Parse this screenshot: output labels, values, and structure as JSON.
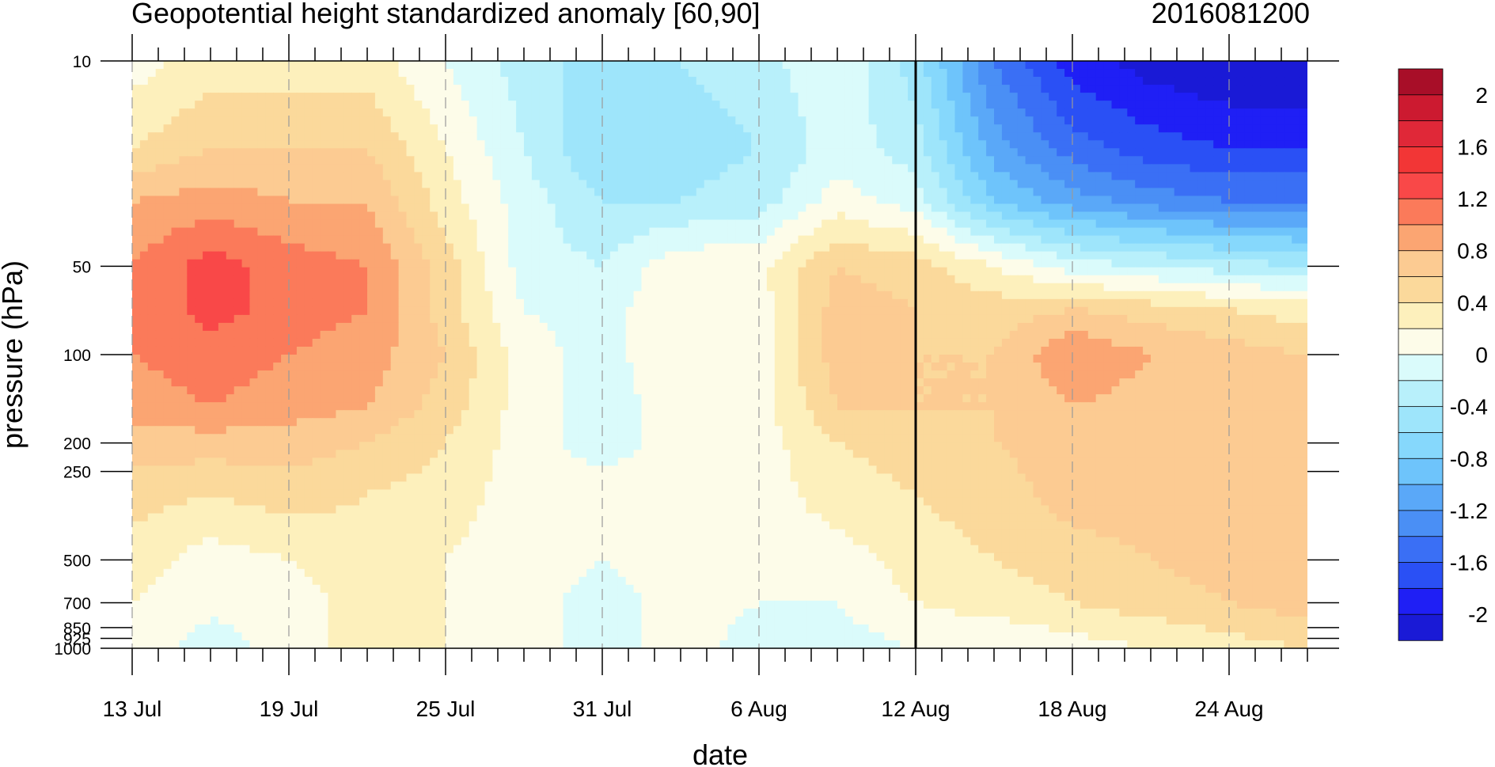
{
  "chart_data": {
    "type": "heatmap",
    "subtype": "filled-contour",
    "title": "Geopotential height standardized anomaly [60,90]",
    "subtitle": "2016081200",
    "xlabel": "date",
    "ylabel": "pressure (hPa)",
    "x_ticks": [
      {
        "label": "13 Jul",
        "day": 0
      },
      {
        "label": "19 Jul",
        "day": 6
      },
      {
        "label": "25 Jul",
        "day": 12
      },
      {
        "label": "31 Jul",
        "day": 18
      },
      {
        "label": "6 Aug",
        "day": 24
      },
      {
        "label": "12 Aug",
        "day": 30
      },
      {
        "label": "18 Aug",
        "day": 36
      },
      {
        "label": "24 Aug",
        "day": 42
      }
    ],
    "x_range_days": [
      0,
      45
    ],
    "y_ticks": [
      10,
      50,
      100,
      200,
      250,
      500,
      700,
      850,
      925,
      1000
    ],
    "y_range": [
      1000,
      10
    ],
    "y_scale": "log",
    "vertical_marker": "12 Aug",
    "grid": "dashed vertical lines at labeled dates",
    "colorbar": {
      "labels": [
        "2",
        "1.6",
        "1.2",
        "0.8",
        "0.4",
        "0",
        "-0.4",
        "-0.8",
        "-1.2",
        "-1.6",
        "-2"
      ],
      "levels": [
        -2.2,
        -2.0,
        -1.8,
        -1.6,
        -1.4,
        -1.2,
        -1.0,
        -0.8,
        -0.6,
        -0.4,
        -0.2,
        0,
        0.2,
        0.4,
        0.6,
        0.8,
        1.0,
        1.2,
        1.4,
        1.6,
        1.8,
        2.0,
        2.2
      ],
      "colors_low_to_high": [
        "#1a1ad6",
        "#1f1ff5",
        "#2a50f5",
        "#3a6ff5",
        "#4a8ff5",
        "#5aa8f8",
        "#6ec4fb",
        "#86d8fc",
        "#9ee5fb",
        "#b8f0fb",
        "#dafbfb",
        "#fdfce9",
        "#fdf0bc",
        "#fbd99b",
        "#fccb92",
        "#fba572",
        "#fb7a5a",
        "#f94848",
        "#f23636",
        "#e02838",
        "#cc1a30",
        "#a80e28"
      ]
    },
    "anomaly_grid": {
      "days": [
        0,
        3,
        6,
        9,
        12,
        15,
        18,
        21,
        24,
        27,
        30,
        33,
        36,
        39,
        42,
        45
      ],
      "pressures_hPa": [
        10,
        20,
        30,
        50,
        70,
        100,
        150,
        200,
        300,
        500,
        700,
        1000
      ],
      "values": [
        [
          0.1,
          0.3,
          0.3,
          0.3,
          0.0,
          -0.3,
          -0.5,
          -0.4,
          -0.3,
          0.0,
          -0.5,
          -1.4,
          -1.9,
          -2.1,
          -2.2,
          -2.2
        ],
        [
          0.4,
          0.6,
          0.6,
          0.6,
          0.2,
          -0.2,
          -0.6,
          -0.5,
          -0.4,
          -0.1,
          -0.3,
          -1.1,
          -1.5,
          -1.7,
          -1.8,
          -1.8
        ],
        [
          0.8,
          0.9,
          0.8,
          0.8,
          0.3,
          -0.1,
          -0.4,
          -0.4,
          -0.3,
          0.1,
          -0.1,
          -0.8,
          -1.1,
          -1.3,
          -1.4,
          -1.4
        ],
        [
          1.0,
          1.3,
          1.1,
          1.0,
          0.5,
          -0.1,
          -0.2,
          0.15,
          0.15,
          0.6,
          0.5,
          0.2,
          -0.1,
          -0.2,
          -0.3,
          -0.4
        ],
        [
          1.0,
          1.3,
          1.1,
          1.0,
          0.5,
          0.0,
          -0.1,
          0.2,
          0.1,
          0.7,
          0.6,
          0.5,
          0.6,
          0.5,
          0.4,
          0.3
        ],
        [
          1.0,
          1.1,
          1.0,
          0.9,
          0.6,
          0.1,
          -0.1,
          0.2,
          0.1,
          0.7,
          0.6,
          0.6,
          1.0,
          0.8,
          0.7,
          0.6
        ],
        [
          0.9,
          1.0,
          0.9,
          0.8,
          0.5,
          0.1,
          -0.1,
          0.1,
          0.1,
          0.6,
          0.6,
          0.6,
          0.8,
          0.7,
          0.7,
          0.6
        ],
        [
          0.7,
          0.7,
          0.7,
          0.6,
          0.4,
          0.1,
          -0.1,
          0.1,
          0.1,
          0.4,
          0.5,
          0.6,
          0.7,
          0.7,
          0.6,
          0.6
        ],
        [
          0.5,
          0.4,
          0.5,
          0.4,
          0.3,
          0.1,
          0.1,
          0.1,
          0.1,
          0.3,
          0.4,
          0.5,
          0.7,
          0.7,
          0.7,
          0.7
        ],
        [
          0.3,
          0.1,
          0.2,
          0.3,
          0.2,
          0.1,
          0.0,
          0.1,
          0.1,
          0.1,
          0.3,
          0.4,
          0.5,
          0.6,
          0.7,
          0.7
        ],
        [
          0.2,
          0.05,
          0.1,
          0.3,
          0.2,
          0.1,
          -0.1,
          0.1,
          0.0,
          0.0,
          0.2,
          0.3,
          0.4,
          0.5,
          0.6,
          0.7
        ],
        [
          0.1,
          -0.1,
          0.1,
          0.3,
          0.2,
          0.1,
          -0.1,
          0.1,
          -0.1,
          -0.1,
          0.0,
          0.0,
          0.1,
          0.2,
          0.3,
          0.4
        ]
      ]
    }
  }
}
